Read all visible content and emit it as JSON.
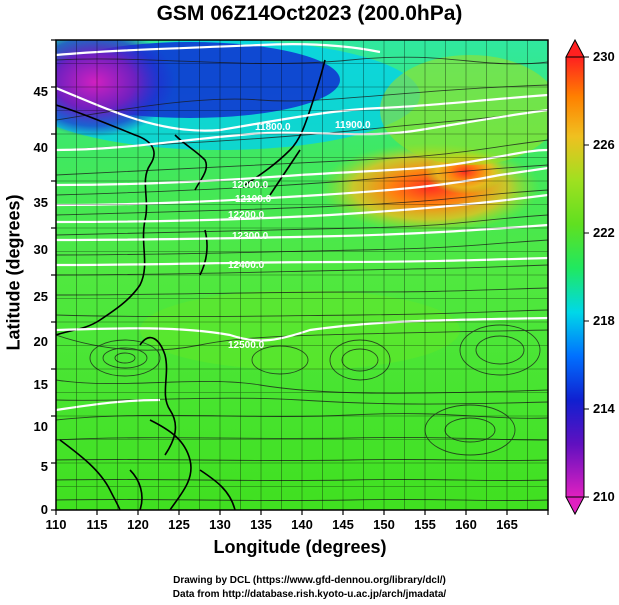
{
  "title": "GSM 06Z14Oct2023 (200.0hPa)",
  "xlabel": "Longitude (degrees)",
  "ylabel": "Latitude (degrees)",
  "x_ticks": [
    "110",
    "115",
    "120",
    "125",
    "130",
    "135",
    "140",
    "145",
    "150",
    "155",
    "160",
    "165"
  ],
  "y_ticks": [
    "0",
    "5",
    "10",
    "15",
    "20",
    "25",
    "30",
    "35",
    "40",
    "45"
  ],
  "colorbar": {
    "ticks": [
      "230",
      "226",
      "222",
      "218",
      "214",
      "210"
    ],
    "range": [
      210,
      230
    ],
    "colors": [
      "#e020c0",
      "#4020c8",
      "#0080ff",
      "#00e0e0",
      "#20e840",
      "#90e020",
      "#e8c020",
      "#ff8000",
      "#ff2020"
    ]
  },
  "credits": {
    "line1": "Drawing by DCL (https://www.gfd-dennou.org/library/dcl/)",
    "line2": "Data from http://database.rish.kyoto-u.ac.jp/arch/jmadata/"
  },
  "contour_labels": [
    "11800.0",
    "11900.0",
    "12000.0",
    "12100.0",
    "12200.0",
    "12300.0",
    "12400.0",
    "12500.0"
  ],
  "chart_data": {
    "type": "heatmap",
    "title": "GSM 06Z14Oct2023 (200.0hPa)",
    "xlabel": "Longitude (degrees)",
    "ylabel": "Latitude (degrees)",
    "xlim": [
      110,
      170
    ],
    "ylim": [
      0,
      50
    ],
    "field": "temperature-colored map with geopotential height contours and wind streamlines",
    "colorbar_range": [
      210,
      230
    ],
    "grid": true,
    "features": [
      {
        "name": "cold core",
        "lon": 115,
        "lat": 45,
        "value": 210
      },
      {
        "name": "cold band",
        "lon": 135,
        "lat": 44,
        "value": 214
      },
      {
        "name": "warm maximum",
        "lon": 159,
        "lat": 37,
        "value": 228
      }
    ]
  }
}
